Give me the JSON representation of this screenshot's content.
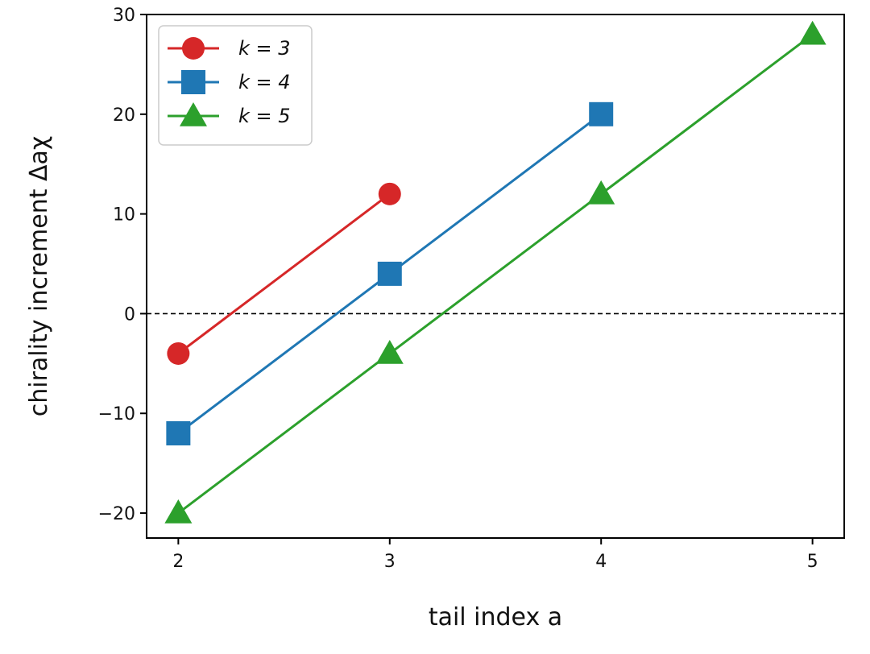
{
  "chart_data": {
    "type": "line",
    "xlabel": "tail index a",
    "ylabel": "chirality increment Δaχ",
    "xlim": [
      1.85,
      5.15
    ],
    "ylim": [
      -22.5,
      30
    ],
    "x_ticks": [
      2,
      3,
      4,
      5
    ],
    "y_ticks": [
      -20,
      -10,
      0,
      10,
      20,
      30
    ],
    "x_tick_labels": [
      "2",
      "3",
      "4",
      "5"
    ],
    "y_tick_labels": [
      "−20",
      "−10",
      "0",
      "10",
      "20",
      "30"
    ],
    "reference_line": {
      "y": 0,
      "style": "dashed",
      "color": "#000000"
    },
    "grid": false,
    "legend_position": "top-left",
    "series": [
      {
        "name": "k = 3",
        "marker": "circle",
        "color": "#d62728",
        "x": [
          2,
          3
        ],
        "y": [
          -4,
          12
        ]
      },
      {
        "name": "k = 4",
        "marker": "square",
        "color": "#1f77b4",
        "x": [
          2,
          3,
          4
        ],
        "y": [
          -12,
          4,
          20
        ]
      },
      {
        "name": "k = 5",
        "marker": "triangle",
        "color": "#2ca02c",
        "x": [
          2,
          3,
          4,
          5
        ],
        "y": [
          -20,
          -4,
          12,
          28
        ]
      }
    ]
  }
}
